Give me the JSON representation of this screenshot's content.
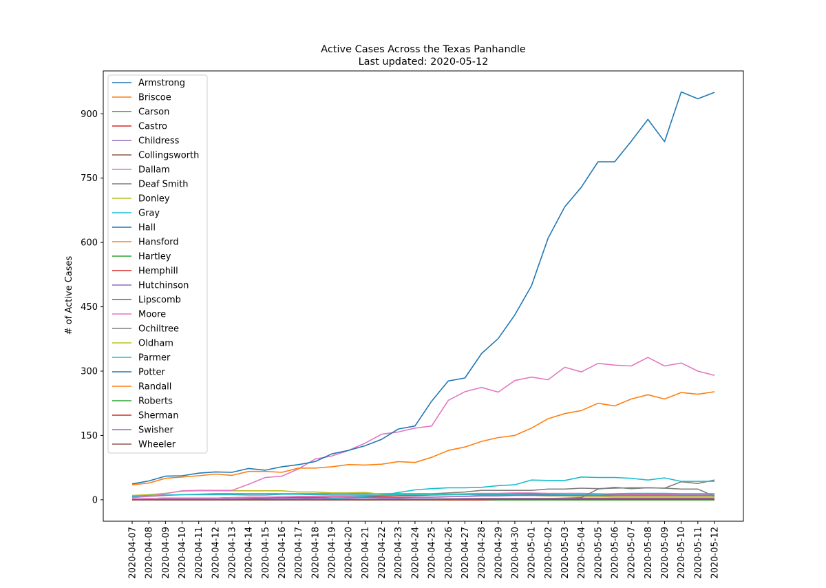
{
  "chart_data": {
    "type": "line",
    "title": "Active Cases Across the Texas Panhandle",
    "subtitle": "Last updated: 2020-05-12",
    "xlabel": "",
    "ylabel": "# of Active Cases",
    "ylim": [
      -50,
      1000
    ],
    "yticks": [
      0,
      150,
      300,
      450,
      600,
      750,
      900
    ],
    "grid": false,
    "legend_position": "upper-left",
    "x": [
      "2020-04-07",
      "2020-04-08",
      "2020-04-09",
      "2020-04-10",
      "2020-04-11",
      "2020-04-12",
      "2020-04-13",
      "2020-04-14",
      "2020-04-15",
      "2020-04-16",
      "2020-04-17",
      "2020-04-18",
      "2020-04-19",
      "2020-04-20",
      "2020-04-21",
      "2020-04-22",
      "2020-04-23",
      "2020-04-24",
      "2020-04-25",
      "2020-04-26",
      "2020-04-27",
      "2020-04-28",
      "2020-04-29",
      "2020-04-30",
      "2020-05-01",
      "2020-05-02",
      "2020-05-03",
      "2020-05-04",
      "2020-05-05",
      "2020-05-06",
      "2020-05-07",
      "2020-05-08",
      "2020-05-09",
      "2020-05-10",
      "2020-05-11",
      "2020-05-12"
    ],
    "series": [
      {
        "name": "Armstrong",
        "color": "#1f77b4",
        "values": [
          0,
          0,
          0,
          0,
          0,
          0,
          0,
          0,
          0,
          0,
          0,
          0,
          0,
          0,
          0,
          0,
          0,
          0,
          0,
          0,
          0,
          0,
          0,
          0,
          0,
          0,
          0,
          0,
          0,
          0,
          0,
          0,
          0,
          0,
          0,
          0
        ]
      },
      {
        "name": "Briscoe",
        "color": "#ff7f0e",
        "values": [
          0,
          0,
          0,
          0,
          0,
          0,
          0,
          0,
          0,
          0,
          0,
          0,
          0,
          0,
          0,
          0,
          0,
          0,
          0,
          0,
          0,
          0,
          0,
          0,
          0,
          0,
          0,
          0,
          0,
          0,
          0,
          0,
          0,
          0,
          0,
          0
        ]
      },
      {
        "name": "Carson",
        "color": "#2ca02c",
        "values": [
          0,
          0,
          0,
          0,
          0,
          0,
          0,
          0,
          0,
          0,
          0,
          0,
          0,
          0,
          1,
          1,
          2,
          2,
          2,
          2,
          2,
          3,
          3,
          3,
          3,
          3,
          3,
          3,
          3,
          3,
          3,
          3,
          3,
          3,
          3,
          3
        ]
      },
      {
        "name": "Castro",
        "color": "#d62728",
        "values": [
          2,
          3,
          4,
          4,
          4,
          4,
          5,
          5,
          5,
          6,
          6,
          6,
          7,
          7,
          7,
          8,
          9,
          10,
          11,
          12,
          13,
          14,
          14,
          15,
          14,
          13,
          13,
          13,
          13,
          12,
          12,
          12,
          12,
          12,
          12,
          12
        ]
      },
      {
        "name": "Childress",
        "color": "#9467bd",
        "values": [
          0,
          0,
          0,
          0,
          0,
          0,
          0,
          0,
          0,
          0,
          0,
          0,
          0,
          0,
          0,
          0,
          0,
          0,
          0,
          0,
          0,
          0,
          0,
          0,
          0,
          0,
          0,
          0,
          0,
          0,
          0,
          0,
          0,
          0,
          0,
          0
        ]
      },
      {
        "name": "Collingsworth",
        "color": "#8c564b",
        "values": [
          0,
          0,
          0,
          0,
          0,
          0,
          0,
          0,
          0,
          0,
          0,
          0,
          0,
          0,
          0,
          0,
          0,
          0,
          0,
          0,
          0,
          0,
          0,
          0,
          0,
          0,
          0,
          0,
          0,
          0,
          0,
          0,
          0,
          0,
          0,
          0
        ]
      },
      {
        "name": "Dallam",
        "color": "#e377c2",
        "values": [
          2,
          3,
          4,
          4,
          4,
          4,
          5,
          6,
          6,
          7,
          8,
          8,
          8,
          8,
          9,
          10,
          11,
          12,
          12,
          13,
          14,
          15,
          15,
          16,
          16,
          15,
          15,
          15,
          14,
          13,
          13,
          13,
          13,
          12,
          12,
          12
        ]
      },
      {
        "name": "Deaf Smith",
        "color": "#7f7f7f",
        "values": [
          6,
          8,
          10,
          12,
          13,
          14,
          14,
          14,
          14,
          14,
          14,
          14,
          14,
          14,
          14,
          14,
          14,
          14,
          14,
          16,
          18,
          22,
          22,
          22,
          22,
          25,
          25,
          27,
          26,
          27,
          28,
          28,
          27,
          25,
          25,
          8
        ]
      },
      {
        "name": "Donley",
        "color": "#bcbd22",
        "values": [
          10,
          12,
          15,
          20,
          21,
          21,
          21,
          21,
          21,
          21,
          18,
          18,
          16,
          16,
          17,
          13,
          13,
          13,
          13,
          13,
          13,
          10,
          10,
          10,
          10,
          9,
          9,
          8,
          8,
          7,
          7,
          7,
          7,
          7,
          7,
          7
        ]
      },
      {
        "name": "Gray",
        "color": "#17becf",
        "values": [
          8,
          10,
          11,
          12,
          12,
          12,
          12,
          11,
          11,
          13,
          13,
          12,
          11,
          11,
          11,
          11,
          12,
          12,
          12,
          12,
          12,
          12,
          12,
          12,
          12,
          12,
          13,
          13,
          13,
          14,
          15,
          15,
          15,
          14,
          14,
          14
        ]
      },
      {
        "name": "Hall",
        "color": "#1f77b4",
        "values": [
          0,
          0,
          0,
          0,
          0,
          0,
          0,
          0,
          0,
          0,
          0,
          0,
          0,
          0,
          0,
          0,
          0,
          0,
          0,
          0,
          0,
          0,
          0,
          0,
          0,
          0,
          0,
          0,
          0,
          0,
          0,
          0,
          0,
          0,
          0,
          0
        ]
      },
      {
        "name": "Hansford",
        "color": "#ff7f0e",
        "values": [
          0,
          0,
          0,
          0,
          0,
          0,
          0,
          0,
          0,
          0,
          0,
          0,
          0,
          0,
          0,
          0,
          0,
          0,
          0,
          1,
          1,
          1,
          2,
          2,
          2,
          2,
          2,
          2,
          2,
          2,
          2,
          2,
          2,
          2,
          2,
          2
        ]
      },
      {
        "name": "Hartley",
        "color": "#2ca02c",
        "values": [
          0,
          0,
          0,
          0,
          0,
          0,
          0,
          0,
          0,
          0,
          0,
          0,
          0,
          0,
          0,
          0,
          0,
          0,
          0,
          0,
          0,
          1,
          1,
          1,
          1,
          1,
          1,
          1,
          1,
          1,
          1,
          1,
          1,
          1,
          1,
          1
        ]
      },
      {
        "name": "Hemphill",
        "color": "#d62728",
        "values": [
          0,
          0,
          0,
          0,
          0,
          0,
          0,
          0,
          0,
          0,
          0,
          0,
          0,
          0,
          0,
          0,
          0,
          1,
          1,
          1,
          1,
          1,
          2,
          2,
          2,
          2,
          2,
          2,
          2,
          2,
          2,
          2,
          2,
          2,
          2,
          2
        ]
      },
      {
        "name": "Hutchinson",
        "color": "#9467bd",
        "values": [
          0,
          0,
          1,
          1,
          1,
          1,
          2,
          2,
          3,
          3,
          3,
          4,
          4,
          4,
          5,
          5,
          5,
          6,
          6,
          7,
          8,
          9,
          9,
          10,
          10,
          10,
          10,
          10,
          10,
          10,
          10,
          10,
          10,
          10,
          10,
          10
        ]
      },
      {
        "name": "Lipscomb",
        "color": "#8c564b",
        "values": [
          0,
          0,
          0,
          0,
          0,
          0,
          0,
          0,
          0,
          0,
          0,
          0,
          0,
          0,
          0,
          0,
          0,
          0,
          0,
          0,
          0,
          1,
          1,
          1,
          1,
          1,
          1,
          1,
          1,
          1,
          1,
          1,
          1,
          1,
          1,
          1
        ]
      },
      {
        "name": "Moore",
        "color": "#e377c2",
        "values": [
          5,
          8,
          14,
          21,
          22,
          22,
          22,
          36,
          52,
          55,
          72,
          95,
          102,
          115,
          132,
          153,
          158,
          167,
          172,
          232,
          252,
          262,
          251,
          278,
          286,
          280,
          309,
          298,
          318,
          314,
          312,
          332,
          312,
          319,
          300,
          290
        ]
      },
      {
        "name": "Ochiltree",
        "color": "#7f7f7f",
        "values": [
          0,
          0,
          0,
          0,
          0,
          0,
          0,
          0,
          0,
          0,
          0,
          0,
          0,
          0,
          0,
          0,
          0,
          0,
          0,
          0,
          0,
          1,
          2,
          3,
          3,
          3,
          4,
          5,
          25,
          29,
          26,
          28,
          27,
          42,
          38,
          46
        ]
      },
      {
        "name": "Oldham",
        "color": "#bcbd22",
        "values": [
          0,
          0,
          0,
          0,
          0,
          0,
          0,
          0,
          0,
          0,
          0,
          0,
          0,
          0,
          0,
          0,
          0,
          0,
          0,
          0,
          0,
          0,
          0,
          0,
          0,
          0,
          0,
          0,
          0,
          0,
          0,
          0,
          0,
          0,
          0,
          0
        ]
      },
      {
        "name": "Parmer",
        "color": "#17becf",
        "values": [
          0,
          0,
          0,
          0,
          0,
          0,
          0,
          0,
          0,
          0,
          0,
          0,
          3,
          5,
          8,
          10,
          17,
          23,
          26,
          28,
          28,
          29,
          33,
          35,
          46,
          45,
          45,
          53,
          52,
          52,
          50,
          46,
          51,
          43,
          43,
          43
        ]
      },
      {
        "name": "Potter",
        "color": "#1f77b4",
        "values": [
          37,
          44,
          55,
          56,
          62,
          65,
          64,
          73,
          69,
          77,
          82,
          89,
          107,
          115,
          126,
          141,
          165,
          172,
          230,
          277,
          284,
          341,
          376,
          431,
          499,
          610,
          683,
          729,
          788,
          788,
          836,
          887,
          835,
          951,
          935,
          950
        ]
      },
      {
        "name": "Randall",
        "color": "#ff7f0e",
        "values": [
          35,
          39,
          50,
          53,
          56,
          60,
          57,
          66,
          66,
          64,
          74,
          74,
          77,
          82,
          81,
          83,
          89,
          87,
          99,
          115,
          123,
          136,
          145,
          150,
          167,
          189,
          201,
          208,
          225,
          219,
          235,
          245,
          235,
          250,
          246,
          252
        ]
      },
      {
        "name": "Roberts",
        "color": "#2ca02c",
        "values": [
          0,
          0,
          0,
          0,
          0,
          0,
          0,
          0,
          0,
          0,
          0,
          0,
          0,
          0,
          0,
          0,
          0,
          0,
          0,
          0,
          0,
          0,
          0,
          0,
          0,
          0,
          0,
          0,
          0,
          0,
          0,
          0,
          0,
          0,
          0,
          0
        ]
      },
      {
        "name": "Sherman",
        "color": "#d62728",
        "values": [
          0,
          0,
          0,
          0,
          0,
          0,
          0,
          0,
          0,
          0,
          0,
          0,
          0,
          0,
          0,
          0,
          0,
          0,
          0,
          0,
          0,
          0,
          1,
          1,
          1,
          1,
          1,
          2,
          2,
          2,
          2,
          2,
          2,
          2,
          2,
          2
        ]
      },
      {
        "name": "Swisher",
        "color": "#9467bd",
        "values": [
          0,
          0,
          0,
          0,
          0,
          0,
          0,
          0,
          1,
          1,
          1,
          1,
          1,
          1,
          1,
          2,
          2,
          2,
          2,
          2,
          3,
          3,
          3,
          3,
          3,
          3,
          3,
          4,
          4,
          4,
          4,
          4,
          4,
          4,
          4,
          4
        ]
      },
      {
        "name": "Wheeler",
        "color": "#8c564b",
        "values": [
          0,
          0,
          0,
          0,
          0,
          0,
          0,
          0,
          0,
          0,
          0,
          0,
          0,
          0,
          0,
          0,
          0,
          0,
          0,
          1,
          1,
          1,
          1,
          1,
          1,
          1,
          1,
          1,
          1,
          1,
          1,
          1,
          1,
          1,
          1,
          1
        ]
      }
    ]
  }
}
